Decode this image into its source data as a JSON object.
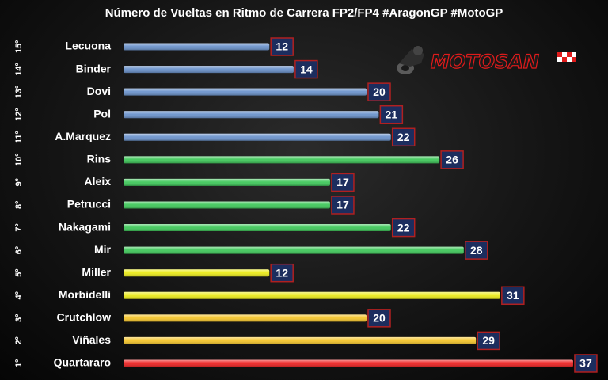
{
  "chart_data": {
    "type": "bar",
    "orientation": "horizontal",
    "title": "Número de Vueltas en Ritmo de Carrera FP2/FP4 #AragonGP #MotoGP",
    "categories": [
      "Lecuona",
      "Binder",
      "Dovi",
      "Pol",
      "A.Marquez",
      "Rins",
      "Aleix",
      "Petrucci",
      "Nakagami",
      "Mir",
      "Miller",
      "Morbidelli",
      "Crutchlow",
      "Viñales",
      "Quartararo"
    ],
    "positions": [
      "15º",
      "14º",
      "13º",
      "12º",
      "11º",
      "10º",
      "9º",
      "8º",
      "7º",
      "6º",
      "5º",
      "4º",
      "3º",
      "2º",
      "1º"
    ],
    "values": [
      12,
      14,
      20,
      21,
      22,
      26,
      17,
      17,
      22,
      28,
      12,
      31,
      20,
      29,
      37
    ],
    "bar_colors": [
      "#6b93cc",
      "#6b93cc",
      "#6b93cc",
      "#6b93cc",
      "#6b93cc",
      "#3fc85a",
      "#3fc85a",
      "#3fc85a",
      "#3fc85a",
      "#3fc85a",
      "#ecec1a",
      "#ecec1a",
      "#f5c52a",
      "#f5c52a",
      "#ee2222"
    ],
    "value_box_color": "#1c2d5e",
    "value_box_border": "#b02020",
    "xlim": [
      0,
      37
    ],
    "grid": false,
    "legend": "none",
    "xlabel": "",
    "ylabel": ""
  },
  "logo": {
    "text": "MOTOSAN",
    "accent": "#e01b1b"
  }
}
